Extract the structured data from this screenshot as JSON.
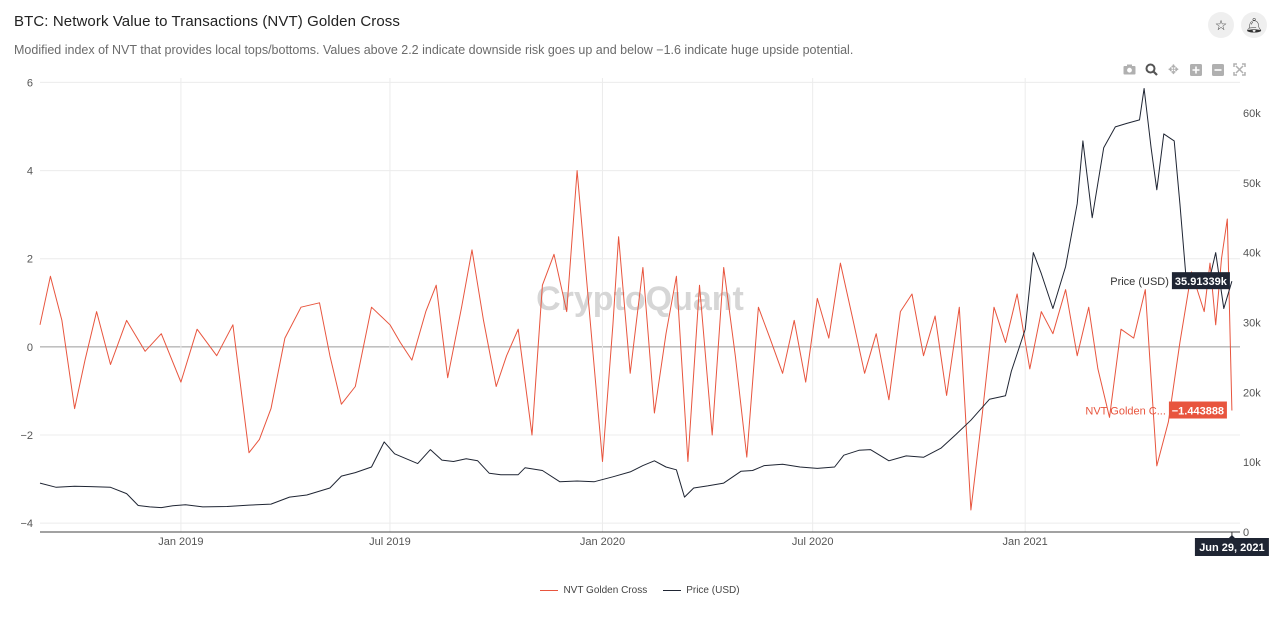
{
  "header": {
    "title": "BTC: Network Value to Transactions (NVT) Golden Cross",
    "subtitle": "Modified index of NVT that provides local tops/bottoms. Values above 2.2 indicate downside risk goes up and below −1.6 indicate huge upside potential.",
    "star_icon": "star-icon",
    "bell_icon": "bell-icon"
  },
  "modebar": {
    "icons": [
      "camera-icon",
      "zoom-icon",
      "pan-icon",
      "zoom-in-icon",
      "zoom-out-icon",
      "autoscale-icon"
    ]
  },
  "watermark": "CryptoQuant",
  "colors": {
    "nvt": "#e8553e",
    "price": "#1f2533",
    "grid": "#ececec",
    "zero_line": "#9a9a9a"
  },
  "chart_data": {
    "type": "line",
    "x_range": [
      "2018-09-01",
      "2021-07-06"
    ],
    "x_ticks": [
      "Jan 2019",
      "Jul 2019",
      "Jan 2020",
      "Jul 2020",
      "Jan 2021"
    ],
    "y_left": {
      "range": [
        -4.2,
        6.1
      ],
      "ticks": [
        "−4",
        "−2",
        "0",
        "2",
        "4",
        "6"
      ]
    },
    "y_right": {
      "range": [
        0,
        65000
      ],
      "ticks": [
        "0",
        "10k",
        "20k",
        "30k",
        "40k",
        "50k",
        "60k"
      ]
    },
    "grid": true,
    "legend_position": "bottom-center",
    "series": [
      {
        "name": "NVT Golden Cross",
        "axis": "left",
        "points": [
          [
            "2018-09-01",
            0.5
          ],
          [
            "2018-09-10",
            1.6
          ],
          [
            "2018-09-20",
            0.6
          ],
          [
            "2018-10-01",
            -1.4
          ],
          [
            "2018-10-10",
            -0.3
          ],
          [
            "2018-10-20",
            0.8
          ],
          [
            "2018-11-01",
            -0.4
          ],
          [
            "2018-11-15",
            0.6
          ],
          [
            "2018-12-01",
            -0.1
          ],
          [
            "2018-12-15",
            0.3
          ],
          [
            "2019-01-01",
            -0.8
          ],
          [
            "2019-01-15",
            0.4
          ],
          [
            "2019-02-01",
            -0.2
          ],
          [
            "2019-02-15",
            0.5
          ],
          [
            "2019-03-01",
            -2.4
          ],
          [
            "2019-03-10",
            -2.1
          ],
          [
            "2019-03-20",
            -1.4
          ],
          [
            "2019-04-01",
            0.2
          ],
          [
            "2019-04-15",
            0.9
          ],
          [
            "2019-05-01",
            1.0
          ],
          [
            "2019-05-10",
            -0.2
          ],
          [
            "2019-05-20",
            -1.3
          ],
          [
            "2019-06-01",
            -0.9
          ],
          [
            "2019-06-15",
            0.9
          ],
          [
            "2019-07-01",
            0.5
          ],
          [
            "2019-07-10",
            0.1
          ],
          [
            "2019-07-20",
            -0.3
          ],
          [
            "2019-08-01",
            0.8
          ],
          [
            "2019-08-10",
            1.4
          ],
          [
            "2019-08-20",
            -0.7
          ],
          [
            "2019-09-01",
            0.9
          ],
          [
            "2019-09-10",
            2.2
          ],
          [
            "2019-09-20",
            0.6
          ],
          [
            "2019-10-01",
            -0.9
          ],
          [
            "2019-10-10",
            -0.2
          ],
          [
            "2019-10-20",
            0.4
          ],
          [
            "2019-11-01",
            -2.0
          ],
          [
            "2019-11-10",
            1.4
          ],
          [
            "2019-11-20",
            2.1
          ],
          [
            "2019-12-01",
            0.8
          ],
          [
            "2019-12-10",
            4.0
          ],
          [
            "2019-12-20",
            1.0
          ],
          [
            "2020-01-01",
            -2.6
          ],
          [
            "2020-01-10",
            0.5
          ],
          [
            "2020-01-15",
            2.5
          ],
          [
            "2020-01-25",
            -0.6
          ],
          [
            "2020-02-05",
            1.8
          ],
          [
            "2020-02-15",
            -1.5
          ],
          [
            "2020-02-25",
            0.3
          ],
          [
            "2020-03-05",
            1.6
          ],
          [
            "2020-03-15",
            -2.6
          ],
          [
            "2020-03-25",
            1.4
          ],
          [
            "2020-04-05",
            -2.0
          ],
          [
            "2020-04-15",
            1.8
          ],
          [
            "2020-04-25",
            -0.2
          ],
          [
            "2020-05-05",
            -2.5
          ],
          [
            "2020-05-15",
            0.9
          ],
          [
            "2020-05-25",
            0.2
          ],
          [
            "2020-06-05",
            -0.6
          ],
          [
            "2020-06-15",
            0.6
          ],
          [
            "2020-06-25",
            -0.8
          ],
          [
            "2020-07-05",
            1.1
          ],
          [
            "2020-07-15",
            0.2
          ],
          [
            "2020-07-25",
            1.9
          ],
          [
            "2020-08-05",
            0.6
          ],
          [
            "2020-08-15",
            -0.6
          ],
          [
            "2020-08-25",
            0.3
          ],
          [
            "2020-09-05",
            -1.2
          ],
          [
            "2020-09-15",
            0.8
          ],
          [
            "2020-09-25",
            1.2
          ],
          [
            "2020-10-05",
            -0.2
          ],
          [
            "2020-10-15",
            0.7
          ],
          [
            "2020-10-25",
            -1.1
          ],
          [
            "2020-11-05",
            0.9
          ],
          [
            "2020-11-15",
            -3.7
          ],
          [
            "2020-11-25",
            -1.5
          ],
          [
            "2020-12-05",
            0.9
          ],
          [
            "2020-12-15",
            0.1
          ],
          [
            "2020-12-25",
            1.2
          ],
          [
            "2021-01-05",
            -0.5
          ],
          [
            "2021-01-15",
            0.8
          ],
          [
            "2021-01-25",
            0.3
          ],
          [
            "2021-02-05",
            1.3
          ],
          [
            "2021-02-15",
            -0.2
          ],
          [
            "2021-02-25",
            0.9
          ],
          [
            "2021-03-05",
            -0.5
          ],
          [
            "2021-03-15",
            -1.6
          ],
          [
            "2021-03-25",
            0.4
          ],
          [
            "2021-04-05",
            0.2
          ],
          [
            "2021-04-15",
            1.3
          ],
          [
            "2021-04-25",
            -2.7
          ],
          [
            "2021-05-05",
            -1.7
          ],
          [
            "2021-05-15",
            0.1
          ],
          [
            "2021-05-25",
            1.7
          ],
          [
            "2021-06-05",
            0.8
          ],
          [
            "2021-06-10",
            1.9
          ],
          [
            "2021-06-15",
            0.5
          ],
          [
            "2021-06-20",
            2.0
          ],
          [
            "2021-06-25",
            2.9
          ],
          [
            "2021-06-29",
            -1.443888
          ]
        ]
      },
      {
        "name": "Price (USD)",
        "axis": "right",
        "points": [
          [
            "2018-09-01",
            7000
          ],
          [
            "2018-09-15",
            6400
          ],
          [
            "2018-10-01",
            6550
          ],
          [
            "2018-10-15",
            6500
          ],
          [
            "2018-11-01",
            6400
          ],
          [
            "2018-11-15",
            5500
          ],
          [
            "2018-11-25",
            3800
          ],
          [
            "2018-12-05",
            3600
          ],
          [
            "2018-12-15",
            3500
          ],
          [
            "2018-12-25",
            3750
          ],
          [
            "2019-01-05",
            3900
          ],
          [
            "2019-01-20",
            3600
          ],
          [
            "2019-02-10",
            3650
          ],
          [
            "2019-03-01",
            3850
          ],
          [
            "2019-03-20",
            4000
          ],
          [
            "2019-04-05",
            5000
          ],
          [
            "2019-04-20",
            5300
          ],
          [
            "2019-05-10",
            6300
          ],
          [
            "2019-05-20",
            8000
          ],
          [
            "2019-06-01",
            8500
          ],
          [
            "2019-06-15",
            9300
          ],
          [
            "2019-06-26",
            12900
          ],
          [
            "2019-07-05",
            11200
          ],
          [
            "2019-07-15",
            10500
          ],
          [
            "2019-07-25",
            9800
          ],
          [
            "2019-08-05",
            11800
          ],
          [
            "2019-08-15",
            10300
          ],
          [
            "2019-08-25",
            10100
          ],
          [
            "2019-09-05",
            10500
          ],
          [
            "2019-09-15",
            10200
          ],
          [
            "2019-09-25",
            8400
          ],
          [
            "2019-10-05",
            8200
          ],
          [
            "2019-10-20",
            8200
          ],
          [
            "2019-10-26",
            9200
          ],
          [
            "2019-11-10",
            8800
          ],
          [
            "2019-11-25",
            7200
          ],
          [
            "2019-12-10",
            7300
          ],
          [
            "2019-12-25",
            7200
          ],
          [
            "2020-01-10",
            7900
          ],
          [
            "2020-01-25",
            8600
          ],
          [
            "2020-02-05",
            9500
          ],
          [
            "2020-02-15",
            10200
          ],
          [
            "2020-02-25",
            9300
          ],
          [
            "2020-03-05",
            8900
          ],
          [
            "2020-03-12",
            5000
          ],
          [
            "2020-03-20",
            6300
          ],
          [
            "2020-04-01",
            6600
          ],
          [
            "2020-04-15",
            7000
          ],
          [
            "2020-04-30",
            8700
          ],
          [
            "2020-05-10",
            8800
          ],
          [
            "2020-05-20",
            9500
          ],
          [
            "2020-06-05",
            9700
          ],
          [
            "2020-06-20",
            9300
          ],
          [
            "2020-07-05",
            9100
          ],
          [
            "2020-07-20",
            9300
          ],
          [
            "2020-07-28",
            11000
          ],
          [
            "2020-08-10",
            11700
          ],
          [
            "2020-08-20",
            11800
          ],
          [
            "2020-09-05",
            10200
          ],
          [
            "2020-09-20",
            10900
          ],
          [
            "2020-10-05",
            10700
          ],
          [
            "2020-10-20",
            12000
          ],
          [
            "2020-11-01",
            13800
          ],
          [
            "2020-11-15",
            16000
          ],
          [
            "2020-12-01",
            19000
          ],
          [
            "2020-12-15",
            19500
          ],
          [
            "2020-12-20",
            23000
          ],
          [
            "2021-01-01",
            29000
          ],
          [
            "2021-01-08",
            40000
          ],
          [
            "2021-01-15",
            37000
          ],
          [
            "2021-01-25",
            32000
          ],
          [
            "2021-02-05",
            38000
          ],
          [
            "2021-02-15",
            47000
          ],
          [
            "2021-02-20",
            56000
          ],
          [
            "2021-02-28",
            45000
          ],
          [
            "2021-03-10",
            55000
          ],
          [
            "2021-03-20",
            58000
          ],
          [
            "2021-03-30",
            58500
          ],
          [
            "2021-04-10",
            59000
          ],
          [
            "2021-04-14",
            63500
          ],
          [
            "2021-04-20",
            55000
          ],
          [
            "2021-04-25",
            49000
          ],
          [
            "2021-05-01",
            57000
          ],
          [
            "2021-05-10",
            56000
          ],
          [
            "2021-05-15",
            47000
          ],
          [
            "2021-05-20",
            37000
          ],
          [
            "2021-05-30",
            35000
          ],
          [
            "2021-06-05",
            37000
          ],
          [
            "2021-06-10",
            36500
          ],
          [
            "2021-06-15",
            40000
          ],
          [
            "2021-06-22",
            32000
          ],
          [
            "2021-06-29",
            35913.39
          ]
        ]
      }
    ],
    "hover": {
      "date_label": "Jun 29, 2021",
      "price_label": "Price (USD)",
      "price_value": "35.91339k",
      "nvt_label": "NVT Golden C...",
      "nvt_value": "−1.443888"
    }
  }
}
